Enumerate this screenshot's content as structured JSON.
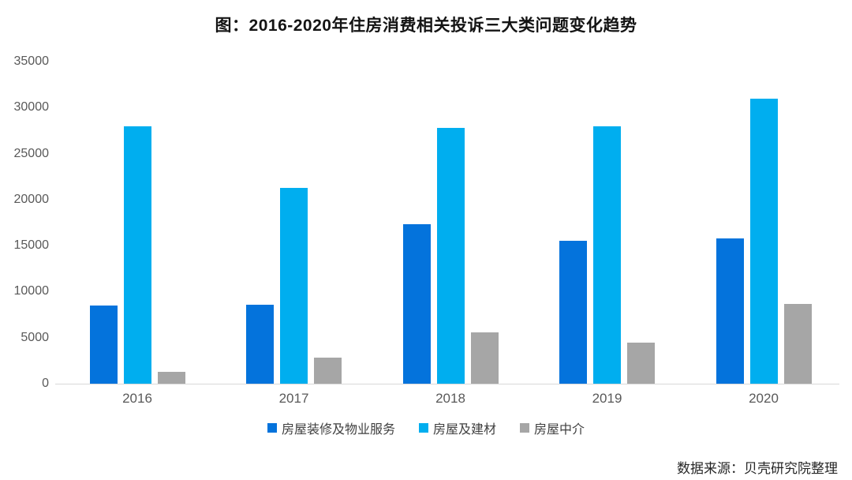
{
  "title": "图：2016-2020年住房消费相关投诉三大类问题变化趋势",
  "source": "数据来源：贝壳研究院整理",
  "chart_data": {
    "type": "bar",
    "title": "图：2016-2020年住房消费相关投诉三大类问题变化趋势",
    "categories": [
      "2016",
      "2017",
      "2018",
      "2019",
      "2020"
    ],
    "series": [
      {
        "name": "房屋装修及物业服务",
        "color": "#0473dc",
        "values": [
          8500,
          8600,
          17300,
          15500,
          15800
        ]
      },
      {
        "name": "房屋及建材",
        "color": "#00aeef",
        "values": [
          28000,
          21300,
          27800,
          28000,
          31000
        ]
      },
      {
        "name": "房屋中介",
        "color": "#a6a6a6",
        "values": [
          1300,
          2800,
          5600,
          4500,
          8700
        ]
      }
    ],
    "xlabel": "",
    "ylabel": "",
    "ylim": [
      0,
      35000
    ],
    "yticks": [
      0,
      5000,
      10000,
      15000,
      20000,
      25000,
      30000,
      35000
    ],
    "grid": false,
    "legend_position": "bottom",
    "axis_line_color": "#d9d9d9",
    "tick_label_color": "#595959"
  }
}
